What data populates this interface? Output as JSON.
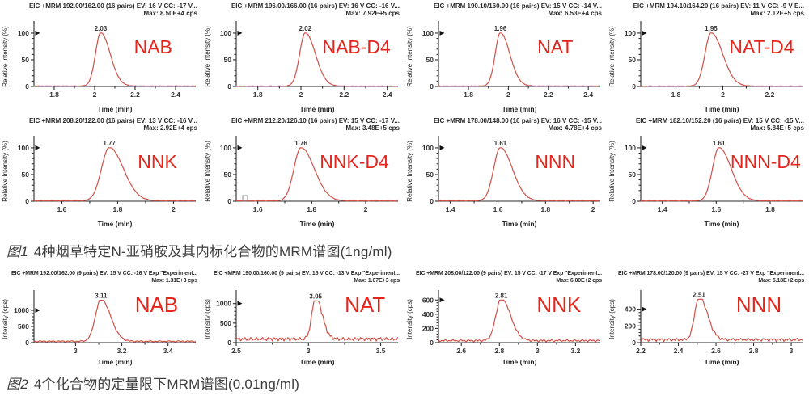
{
  "colors": {
    "curve": "#d05048",
    "compound_label": "#e5241c",
    "axis": "#2b2b2b",
    "text": "#333333"
  },
  "figure1": {
    "caption_label": "图1",
    "caption_text": "4种烟草特定N-亚硝胺及其内标化合物的MRM谱图(1ng/ml)"
  },
  "figure2": {
    "caption_label": "图2",
    "caption_text": "4个化合物的定量限下MRM谱图(0.01ng/ml)"
  },
  "chart_data": [
    {
      "figure": 1,
      "type": "line",
      "compound": "NAB",
      "header": "EIC +MRM 192.00/162.00 (16 pairs) EV: 16 V CC: -17 V...",
      "max_label": "Max: 8.50E+4 cps",
      "peak": {
        "time": 2.03,
        "label": "2.03",
        "intensity": 100
      },
      "xlabel": "Time (min)",
      "ylabel": "Relative Intensity (%)",
      "xlim": [
        1.7,
        2.5
      ],
      "xticks": [
        1.8,
        2,
        2.2,
        2.4
      ],
      "ylim": [
        0,
        112
      ],
      "yticks": [
        0,
        50,
        100
      ],
      "sigma": 0.026,
      "tail": 1.8,
      "noise": 1.0,
      "seed": 1
    },
    {
      "figure": 1,
      "type": "line",
      "compound": "NAB-D4",
      "header": "EIC +MRM 196.00/166.00 (16 pairs) EV: 16 V CC: -16 V...",
      "max_label": "Max: 7.92E+5 cps",
      "peak": {
        "time": 2.02,
        "label": "2.02",
        "intensity": 100
      },
      "xlabel": "Time (min)",
      "ylabel": "Relative Intensity (%)",
      "xlim": [
        1.7,
        2.45
      ],
      "xticks": [
        1.8,
        2,
        2.2,
        2.4
      ],
      "ylim": [
        0,
        112
      ],
      "yticks": [
        0,
        50,
        100
      ],
      "sigma": 0.026,
      "tail": 1.8,
      "noise": 0.8,
      "seed": 2
    },
    {
      "figure": 1,
      "type": "line",
      "compound": "NAT",
      "header": "EIC +MRM 190.10/160.00 (16 pairs) EV: 15 V CC: -14 V...",
      "max_label": "Max: 6.53E+4 cps",
      "peak": {
        "time": 1.96,
        "label": "1.96",
        "intensity": 100
      },
      "xlabel": "Time (min)",
      "ylabel": "Relative Intensity (%)",
      "xlim": [
        1.65,
        2.46
      ],
      "xticks": [
        1.8,
        2,
        2.2,
        2.4
      ],
      "ylim": [
        0,
        112
      ],
      "yticks": [
        0,
        50,
        100
      ],
      "sigma": 0.026,
      "tail": 1.8,
      "noise": 1.0,
      "seed": 3
    },
    {
      "figure": 1,
      "type": "line",
      "compound": "NAT-D4",
      "header": "EIC +MRM 194.10/164.20 (16 pairs) EV: 11 V CC: -9 V E...",
      "max_label": "Max: 2.12E+5 cps",
      "peak": {
        "time": 1.95,
        "label": "1.95",
        "intensity": 100
      },
      "xlabel": "Time (min)",
      "ylabel": "Relative Intensity (%)",
      "xlim": [
        1.65,
        2.34
      ],
      "xticks": [
        1.8,
        2,
        2.2
      ],
      "ylim": [
        0,
        112
      ],
      "yticks": [
        0,
        50,
        100
      ],
      "sigma": 0.026,
      "tail": 1.9,
      "noise": 0.8,
      "seed": 4
    },
    {
      "figure": 1,
      "type": "line",
      "compound": "NNK",
      "header": "EIC +MRM 208.20/122.00 (16 pairs) EV: 13 V CC: -16 V...",
      "max_label": "Max: 2.92E+4 cps",
      "peak": {
        "time": 1.77,
        "label": "1.77",
        "intensity": 100
      },
      "xlabel": "Time (min)",
      "ylabel": "Relative Intensity (%)",
      "xlim": [
        1.5,
        2.08
      ],
      "xticks": [
        1.6,
        1.8,
        2
      ],
      "ylim": [
        0,
        112
      ],
      "yticks": [
        0,
        50,
        100
      ],
      "sigma": 0.028,
      "tail": 1.8,
      "noise": 1.0,
      "seed": 5
    },
    {
      "figure": 1,
      "type": "line",
      "compound": "NNK-D4",
      "header": "EIC +MRM 212.20/126.10 (16 pairs) EV: 15 V CC: -17 V...",
      "max_label": "Max: 3.48E+5 cps",
      "peak": {
        "time": 1.76,
        "label": "1.76",
        "intensity": 100
      },
      "xlabel": "Time (min)",
      "ylabel": "Relative Intensity (%)",
      "xlim": [
        1.52,
        2.12
      ],
      "xticks": [
        1.6,
        1.8,
        2
      ],
      "ylim": [
        0,
        112
      ],
      "yticks": [
        0,
        50,
        100
      ],
      "sigma": 0.026,
      "tail": 1.9,
      "noise": 0.8,
      "seed": 6,
      "square_marker": true
    },
    {
      "figure": 1,
      "type": "line",
      "compound": "NNN",
      "header": "EIC +MRM 178.00/148.00 (16 pairs) EV: 16 V CC: -15 V...",
      "max_label": "Max: 4.78E+4 cps",
      "peak": {
        "time": 1.61,
        "label": "1.61",
        "intensity": 100
      },
      "xlabel": "Time (min)",
      "ylabel": "Relative Intensity (%)",
      "xlim": [
        1.35,
        2.03
      ],
      "xticks": [
        1.4,
        1.6,
        1.8,
        2
      ],
      "ylim": [
        0,
        112
      ],
      "yticks": [
        0,
        50,
        100
      ],
      "sigma": 0.028,
      "tail": 1.8,
      "noise": 1.0,
      "seed": 7
    },
    {
      "figure": 1,
      "type": "line",
      "compound": "NNN-D4",
      "header": "EIC +MRM 182.10/152.20 (16 pairs) EV: 15 V CC: -15 V...",
      "max_label": "Max: 5.84E+5 cps",
      "peak": {
        "time": 1.61,
        "label": "1.61",
        "intensity": 100
      },
      "xlabel": "Time (min)",
      "ylabel": "Relative Intensity (%)",
      "xlim": [
        1.32,
        1.92
      ],
      "xticks": [
        1.4,
        1.6,
        1.8
      ],
      "ylim": [
        0,
        112
      ],
      "yticks": [
        0,
        50,
        100
      ],
      "sigma": 0.024,
      "tail": 1.9,
      "noise": 0.8,
      "seed": 8
    },
    {
      "figure": 2,
      "type": "line",
      "compound": "NAB",
      "header": "EIC +MRM 192.00/162.00 (9 pairs) EV: 15 V CC: -16 V Exp \"Experiment...",
      "max_label": "Max: 1.31E+3 cps",
      "peak": {
        "time": 3.11,
        "label": "3.11",
        "intensity": 1310
      },
      "xlabel": "Time (min)",
      "ylabel": "Intensity (cps)",
      "xlim": [
        2.82,
        3.52
      ],
      "xticks": [
        3,
        3.2,
        3.4
      ],
      "ylim": [
        0,
        1450
      ],
      "yticks": [
        0,
        500,
        1000
      ],
      "sigma": 0.024,
      "tail": 1.7,
      "noise": 4,
      "seed": 9
    },
    {
      "figure": 2,
      "type": "line",
      "compound": "NAT",
      "header": "EIC +MRM 190.00/160.00 (9 pairs) EV: 15 V CC: -13 V Exp \"Experiment...",
      "max_label": "Max: 1.07E+3 cps",
      "peak": {
        "time": 3.05,
        "label": "3.05",
        "intensity": 1070
      },
      "xlabel": "Time (min)",
      "ylabel": "Intensity (cps)",
      "xlim": [
        2.5,
        3.62
      ],
      "xticks": [
        2.5,
        3,
        3.5
      ],
      "ylim": [
        0,
        1200
      ],
      "yticks": [
        0,
        500,
        1000
      ],
      "sigma": 0.026,
      "tail": 1.7,
      "noise": 11,
      "seed": 10
    },
    {
      "figure": 2,
      "type": "line",
      "compound": "NNK",
      "header": "EIC +MRM 208.00/122.00 (9 pairs) EV: 15 V CC: -17 V Exp \"Experiment...",
      "max_label": "Max: 6.00E+2 cps",
      "peak": {
        "time": 2.81,
        "label": "2.81",
        "intensity": 600
      },
      "xlabel": "Time (min)",
      "ylabel": "Intensity (cps)",
      "xlim": [
        2.48,
        3.33
      ],
      "xticks": [
        2.6,
        2.8,
        3,
        3.2
      ],
      "ylim": [
        0,
        660
      ],
      "yticks": [
        0,
        200,
        400,
        600
      ],
      "sigma": 0.028,
      "tail": 1.7,
      "noise": 6,
      "seed": 11
    },
    {
      "figure": 2,
      "type": "line",
      "compound": "NNN",
      "header": "EIC +MRM 178.00/120.00 (9 pairs) EV: 15 V CC: -27 V Exp \"Experiment...",
      "max_label": "Max: 5.18E+2 cps",
      "peak": {
        "time": 2.51,
        "label": "2.51",
        "intensity": 518
      },
      "xlabel": "Time (min)",
      "ylabel": "Intensity (cps)",
      "xlim": [
        2.2,
        3.06
      ],
      "xticks": [
        2.2,
        2.4,
        2.6,
        2.8,
        3
      ],
      "ylim": [
        0,
        560
      ],
      "yticks": [
        0,
        200,
        400
      ],
      "sigma": 0.023,
      "tail": 1.9,
      "noise": 9,
      "seed": 12
    }
  ]
}
